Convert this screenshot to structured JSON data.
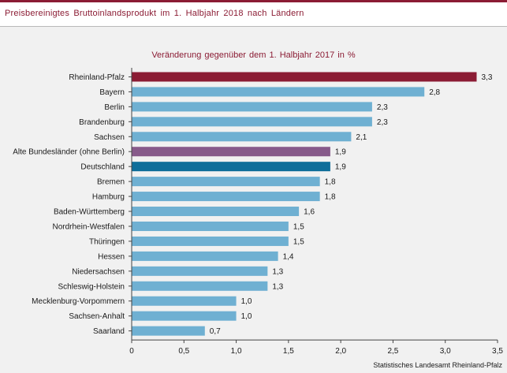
{
  "header": {
    "title": "Preisbereinigtes Bruttoinlandsprodukt im 1. Halbjahr 2018 nach Ländern"
  },
  "chart_data": {
    "type": "bar",
    "orientation": "horizontal",
    "subtitle": "Veränderung gegenüber dem 1. Halbjahr 2017 in %",
    "source": "Statistisches Landesamt Rheinland-Pfalz",
    "categories": [
      "Rheinland-Pfalz",
      "Bayern",
      "Berlin",
      "Brandenburg",
      "Sachsen",
      "Alte Bundesländer (ohne Berlin)",
      "Deutschland",
      "Bremen",
      "Hamburg",
      "Baden-Württemberg",
      "Nordrhein-Westfalen",
      "Thüringen",
      "Hessen",
      "Niedersachsen",
      "Schleswig-Holstein",
      "Mecklenburg-Vorpommern",
      "Sachsen-Anhalt",
      "Saarland"
    ],
    "values": [
      3.3,
      2.8,
      2.3,
      2.3,
      2.1,
      1.9,
      1.9,
      1.8,
      1.8,
      1.6,
      1.5,
      1.5,
      1.4,
      1.3,
      1.3,
      1.0,
      1.0,
      0.7
    ],
    "value_labels": [
      "3,3",
      "2,8",
      "2,3",
      "2,3",
      "2,1",
      "1,9",
      "1,9",
      "1,8",
      "1,8",
      "1,6",
      "1,5",
      "1,5",
      "1,4",
      "1,3",
      "1,3",
      "1,0",
      "1,0",
      "0,7"
    ],
    "bar_colors": [
      "#8b1c34",
      "#6fb0d2",
      "#6fb0d2",
      "#6fb0d2",
      "#6fb0d2",
      "#875a8a",
      "#0f6e9a",
      "#6fb0d2",
      "#6fb0d2",
      "#6fb0d2",
      "#6fb0d2",
      "#6fb0d2",
      "#6fb0d2",
      "#6fb0d2",
      "#6fb0d2",
      "#6fb0d2",
      "#6fb0d2",
      "#6fb0d2"
    ],
    "xlim": [
      0,
      3.5
    ],
    "xticks": [
      0,
      0.5,
      1.0,
      1.5,
      2.0,
      2.5,
      3.0,
      3.5
    ],
    "xtick_labels": [
      "0",
      "0,5",
      "1,0",
      "1,5",
      "2,0",
      "2,5",
      "3,0",
      "3,5"
    ],
    "grid": false,
    "legend": "none"
  }
}
